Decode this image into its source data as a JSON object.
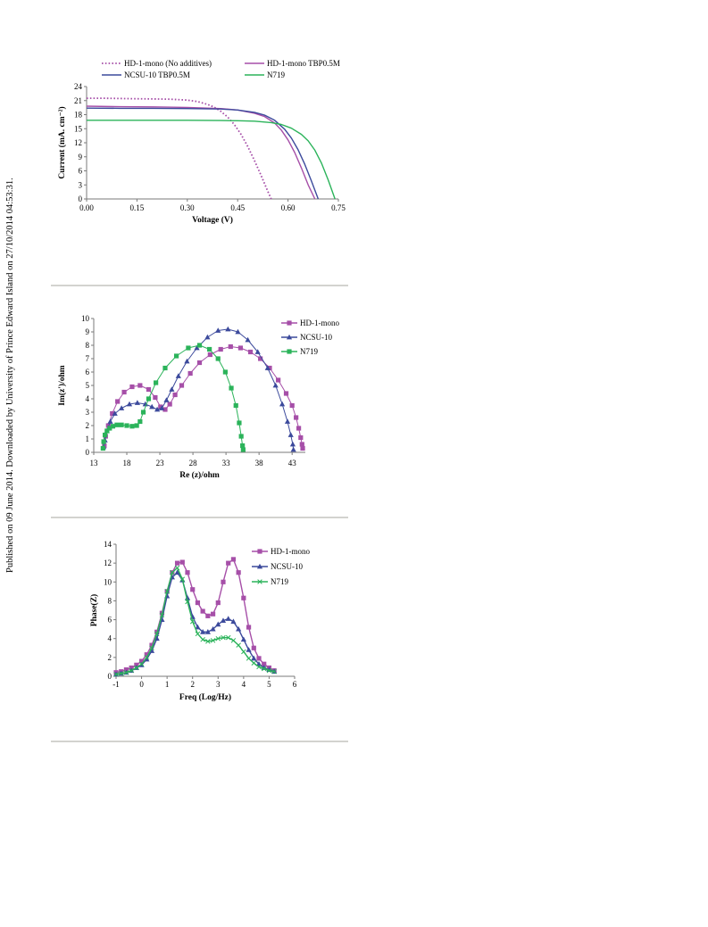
{
  "side_note": "Published on 09 June 2014. Downloaded by University of Prince Edward Island on 27/10/2014 04:53:31.",
  "colors": {
    "purple": "#a64fa8",
    "blue": "#3c4a9c",
    "green": "#2bb35a",
    "rule": "#d3d3cf"
  },
  "chart_data": [
    {
      "type": "line",
      "xlabel": "Voltage (V)",
      "ylabel": "Current (mA. cm⁻²)",
      "xlim": [
        0,
        0.75
      ],
      "ylim": [
        0,
        24
      ],
      "xticks": [
        "0.00",
        "0.15",
        "0.30",
        "0.45",
        "0.60",
        "0.75"
      ],
      "yticks": [
        "0",
        "3",
        "6",
        "9",
        "12",
        "15",
        "18",
        "21",
        "24"
      ],
      "legend_position": "top",
      "grid": false,
      "series": [
        {
          "name": "HD-1-mono (No additives)",
          "color": "#a64fa8",
          "style": "dotted",
          "x": [
            0,
            0.05,
            0.1,
            0.15,
            0.2,
            0.25,
            0.3,
            0.33,
            0.36,
            0.38,
            0.4,
            0.42,
            0.44,
            0.46,
            0.48,
            0.5,
            0.52,
            0.54,
            0.55
          ],
          "y": [
            21.5,
            21.5,
            21.45,
            21.4,
            21.35,
            21.3,
            21.1,
            20.8,
            20.2,
            19.6,
            18.7,
            17.5,
            15.9,
            13.8,
            11.2,
            8.2,
            5.0,
            1.6,
            0
          ]
        },
        {
          "name": "HD-1-mono TBP0.5M",
          "color": "#a64fa8",
          "style": "solid",
          "x": [
            0,
            0.1,
            0.2,
            0.3,
            0.4,
            0.45,
            0.5,
            0.53,
            0.56,
            0.58,
            0.6,
            0.62,
            0.64,
            0.66,
            0.68
          ],
          "y": [
            19.8,
            19.7,
            19.65,
            19.55,
            19.3,
            19.0,
            18.3,
            17.6,
            16.2,
            14.7,
            12.6,
            9.9,
            6.6,
            3.0,
            0
          ]
        },
        {
          "name": "NCSU-10 TBP0.5M",
          "color": "#3c4a9c",
          "style": "solid",
          "x": [
            0,
            0.1,
            0.2,
            0.3,
            0.4,
            0.45,
            0.5,
            0.53,
            0.56,
            0.59,
            0.61,
            0.63,
            0.65,
            0.67,
            0.69
          ],
          "y": [
            19.4,
            19.35,
            19.35,
            19.3,
            19.2,
            19.0,
            18.5,
            17.9,
            16.8,
            14.9,
            13.0,
            10.5,
            7.4,
            3.8,
            0
          ]
        },
        {
          "name": "N719",
          "color": "#2bb35a",
          "style": "solid",
          "x": [
            0,
            0.1,
            0.2,
            0.3,
            0.4,
            0.45,
            0.5,
            0.55,
            0.58,
            0.61,
            0.64,
            0.66,
            0.68,
            0.7,
            0.72,
            0.74
          ],
          "y": [
            16.8,
            16.8,
            16.8,
            16.8,
            16.75,
            16.7,
            16.6,
            16.3,
            15.9,
            15.1,
            13.8,
            12.4,
            10.4,
            7.6,
            4.0,
            0
          ]
        }
      ]
    },
    {
      "type": "scatter",
      "xlabel": "Re (z)/ohm",
      "ylabel": "Im(z')/ohm",
      "xlim": [
        13,
        45
      ],
      "ylim": [
        0,
        10
      ],
      "xticks": [
        "13",
        "18",
        "23",
        "28",
        "33",
        "38",
        "43"
      ],
      "yticks": [
        "0",
        "1",
        "2",
        "3",
        "4",
        "5",
        "6",
        "7",
        "8",
        "9",
        "10"
      ],
      "legend_position": "top-right",
      "grid": false,
      "series": [
        {
          "name": "HD-1-mono",
          "color": "#a64fa8",
          "marker": "square",
          "x": [
            14.6,
            14.8,
            15.2,
            15.8,
            16.6,
            17.6,
            18.8,
            20.0,
            21.3,
            22.3,
            23.1,
            23.8,
            24.5,
            25.3,
            26.3,
            27.6,
            29.0,
            30.6,
            32.2,
            33.7,
            35.2,
            36.7,
            38.2,
            39.6,
            40.9,
            42.1,
            43.0,
            43.6,
            44.0,
            44.3,
            44.5,
            44.6
          ],
          "y": [
            0.5,
            1.2,
            2.0,
            2.9,
            3.8,
            4.5,
            4.9,
            5.0,
            4.7,
            4.1,
            3.4,
            3.2,
            3.6,
            4.3,
            5.0,
            5.9,
            6.7,
            7.3,
            7.7,
            7.9,
            7.8,
            7.5,
            7.0,
            6.3,
            5.4,
            4.4,
            3.5,
            2.6,
            1.8,
            1.1,
            0.6,
            0.3
          ]
        },
        {
          "name": "NCSU-10",
          "color": "#3c4a9c",
          "marker": "triangle",
          "x": [
            14.5,
            14.7,
            15.0,
            15.5,
            16.2,
            17.2,
            18.4,
            19.6,
            20.8,
            21.8,
            22.6,
            23.3,
            24.0,
            24.8,
            25.8,
            27.1,
            28.6,
            30.2,
            31.8,
            33.3,
            34.8,
            36.3,
            37.8,
            39.3,
            40.5,
            41.5,
            42.3,
            42.8,
            43.1,
            43.2
          ],
          "y": [
            0.4,
            0.9,
            1.6,
            2.3,
            2.9,
            3.3,
            3.6,
            3.7,
            3.6,
            3.4,
            3.2,
            3.3,
            3.9,
            4.7,
            5.7,
            6.8,
            7.8,
            8.6,
            9.1,
            9.2,
            9.0,
            8.4,
            7.5,
            6.3,
            5.0,
            3.6,
            2.3,
            1.3,
            0.6,
            0.2
          ]
        },
        {
          "name": "N719",
          "color": "#2bb35a",
          "marker": "square",
          "x": [
            14.4,
            14.5,
            14.7,
            15.0,
            15.4,
            15.9,
            16.5,
            17.2,
            18.0,
            18.8,
            19.5,
            20.0,
            20.5,
            21.3,
            22.4,
            23.8,
            25.5,
            27.3,
            29.0,
            30.5,
            31.8,
            32.9,
            33.8,
            34.5,
            35.0,
            35.3,
            35.5,
            35.6
          ],
          "y": [
            0.3,
            0.8,
            1.3,
            1.6,
            1.8,
            1.95,
            2.05,
            2.05,
            2.0,
            1.95,
            2.0,
            2.3,
            3.0,
            4.0,
            5.2,
            6.3,
            7.2,
            7.8,
            8.0,
            7.7,
            7.0,
            6.0,
            4.8,
            3.5,
            2.2,
            1.2,
            0.5,
            0.2
          ]
        }
      ]
    },
    {
      "type": "line",
      "xlabel": "Freq (Log/Hz)",
      "ylabel": "Phase(Z)",
      "xlim": [
        -1,
        6
      ],
      "ylim": [
        0,
        14
      ],
      "xticks": [
        "-1",
        "0",
        "1",
        "2",
        "3",
        "4",
        "5",
        "6"
      ],
      "yticks": [
        "0",
        "2",
        "4",
        "6",
        "8",
        "10",
        "12",
        "14"
      ],
      "legend_position": "top-right",
      "grid": false,
      "series": [
        {
          "name": "HD-1-mono",
          "color": "#a64fa8",
          "marker": "square",
          "x": [
            -1.0,
            -0.8,
            -0.6,
            -0.4,
            -0.2,
            0.0,
            0.2,
            0.4,
            0.6,
            0.8,
            1.0,
            1.2,
            1.4,
            1.6,
            1.8,
            2.0,
            2.2,
            2.4,
            2.6,
            2.8,
            3.0,
            3.2,
            3.4,
            3.6,
            3.8,
            4.0,
            4.2,
            4.4,
            4.6,
            4.8,
            5.0,
            5.2
          ],
          "y": [
            0.4,
            0.5,
            0.7,
            0.9,
            1.2,
            1.6,
            2.3,
            3.3,
            4.7,
            6.7,
            9.0,
            11.0,
            12.0,
            12.1,
            11.0,
            9.2,
            7.8,
            6.9,
            6.4,
            6.6,
            7.8,
            10.0,
            12.0,
            12.4,
            11.0,
            8.3,
            5.2,
            3.0,
            1.9,
            1.3,
            0.9,
            0.6
          ]
        },
        {
          "name": "NCSU-10",
          "color": "#3c4a9c",
          "marker": "triangle",
          "x": [
            -1.0,
            -0.8,
            -0.6,
            -0.4,
            -0.2,
            0.0,
            0.2,
            0.4,
            0.6,
            0.8,
            1.0,
            1.2,
            1.4,
            1.6,
            1.8,
            2.0,
            2.2,
            2.4,
            2.6,
            2.8,
            3.0,
            3.2,
            3.4,
            3.6,
            3.8,
            4.0,
            4.2,
            4.4,
            4.6,
            4.8,
            5.0,
            5.2
          ],
          "y": [
            0.2,
            0.3,
            0.4,
            0.6,
            0.9,
            1.2,
            1.8,
            2.7,
            4.0,
            6.0,
            8.5,
            10.5,
            11.0,
            10.2,
            8.3,
            6.3,
            5.2,
            4.7,
            4.7,
            5.0,
            5.5,
            5.9,
            6.1,
            5.8,
            5.0,
            3.9,
            2.8,
            1.9,
            1.3,
            0.9,
            0.7,
            0.5
          ]
        },
        {
          "name": "N719",
          "color": "#2bb35a",
          "marker": "x",
          "x": [
            -1.0,
            -0.8,
            -0.6,
            -0.4,
            -0.2,
            0.0,
            0.2,
            0.4,
            0.6,
            0.8,
            1.0,
            1.2,
            1.4,
            1.6,
            1.8,
            2.0,
            2.2,
            2.4,
            2.6,
            2.8,
            3.0,
            3.2,
            3.4,
            3.6,
            3.8,
            4.0,
            4.2,
            4.4,
            4.6,
            4.8,
            5.0,
            5.2
          ],
          "y": [
            0.2,
            0.3,
            0.4,
            0.6,
            0.9,
            1.3,
            2.0,
            3.0,
            4.5,
            6.5,
            9.0,
            11.0,
            11.5,
            10.3,
            7.9,
            5.8,
            4.5,
            3.9,
            3.7,
            3.8,
            4.0,
            4.1,
            4.1,
            3.8,
            3.3,
            2.6,
            1.9,
            1.4,
            1.0,
            0.8,
            0.6,
            0.5
          ]
        }
      ]
    }
  ]
}
